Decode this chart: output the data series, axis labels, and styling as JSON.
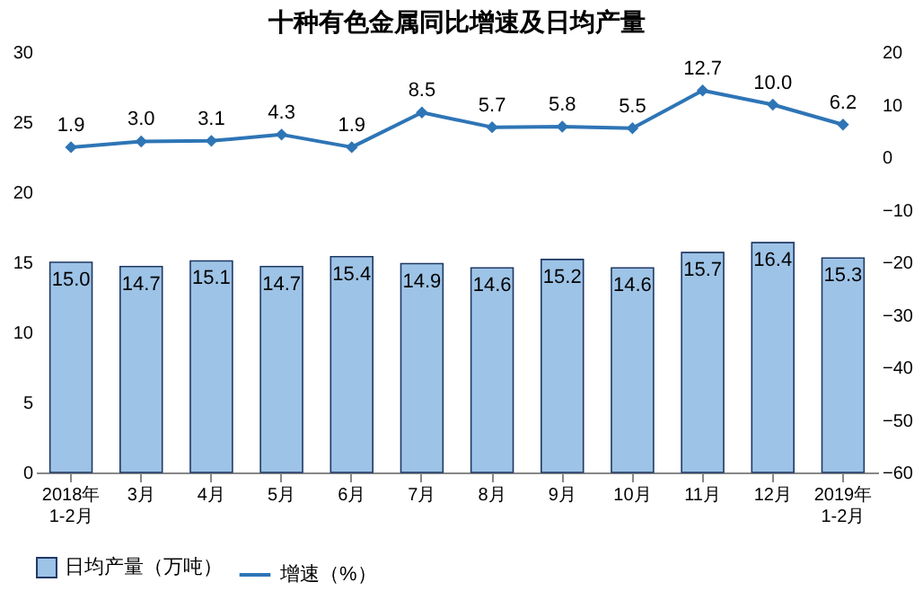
{
  "chart_data": {
    "type": "bar",
    "title": "十种有色金属同比增速及日均产量",
    "categories": [
      "2018年\n1-2月",
      "3月",
      "4月",
      "5月",
      "6月",
      "7月",
      "8月",
      "9月",
      "10月",
      "11月",
      "12月",
      "2019年\n1-2月"
    ],
    "series": [
      {
        "name": "日均产量（万吨）",
        "color": "#9dc3e6",
        "values": [
          15.0,
          14.7,
          15.1,
          14.7,
          15.4,
          14.9,
          14.6,
          15.2,
          14.6,
          15.7,
          16.4,
          15.3
        ],
        "value_labels": [
          "15.0",
          "14.7",
          "15.1",
          "14.7",
          "15.4",
          "14.9",
          "14.6",
          "15.2",
          "14.6",
          "15.7",
          "16.4",
          "15.3"
        ]
      },
      {
        "name": "增速（%）",
        "type": "line",
        "axis": "y2",
        "color": "#2e75b6",
        "values": [
          1.9,
          3.0,
          3.1,
          4.3,
          1.9,
          8.5,
          5.7,
          5.8,
          5.5,
          12.7,
          10.0,
          6.2
        ],
        "value_labels": [
          "1.9",
          "3.0",
          "3.1",
          "4.3",
          "1.9",
          "8.5",
          "5.7",
          "5.8",
          "5.5",
          "12.7",
          "10.0",
          "6.2"
        ]
      }
    ],
    "ylim": [
      0,
      30
    ],
    "yticks": [
      0,
      5,
      10,
      15,
      20,
      25,
      30
    ],
    "y2lim": [
      -60,
      20
    ],
    "y2ticks": [
      -60,
      -50,
      -40,
      -30,
      -20,
      -10,
      0,
      10,
      20
    ],
    "legend": "bottom",
    "marker": "diamond"
  }
}
